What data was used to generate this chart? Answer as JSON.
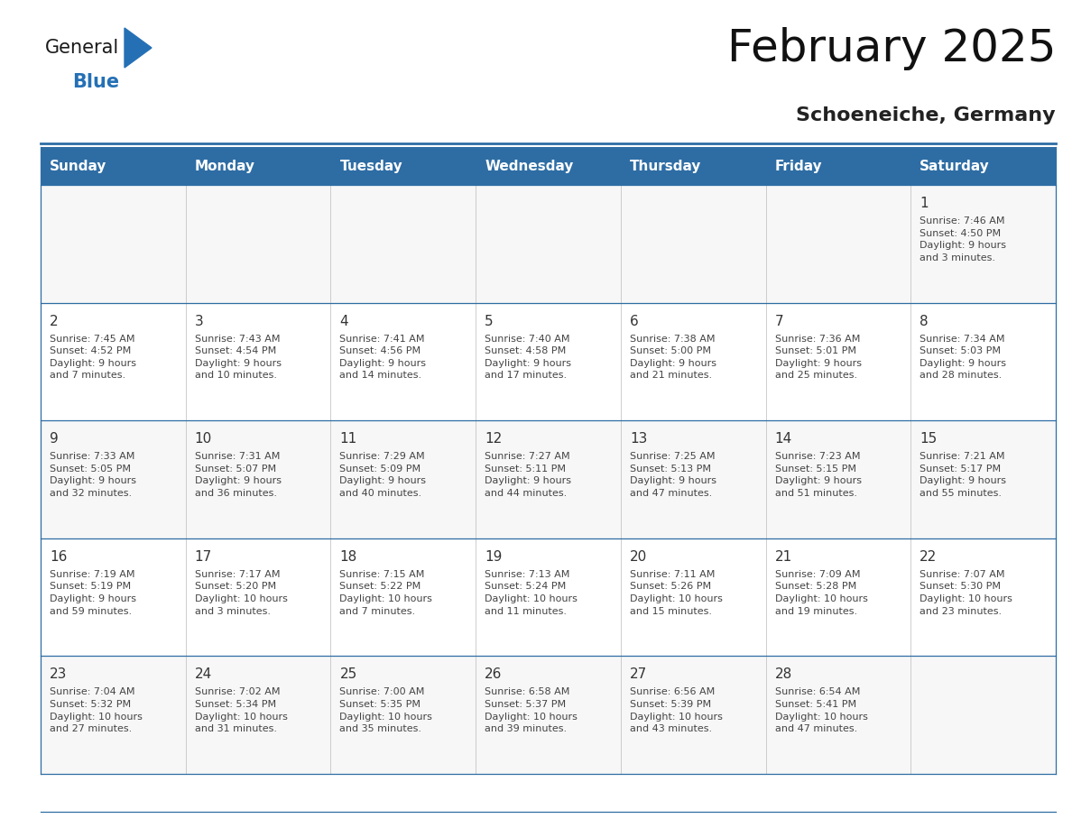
{
  "title": "February 2025",
  "subtitle": "Schoeneiche, Germany",
  "header_bg": "#2E6DA4",
  "header_text_color": "#FFFFFF",
  "day_headers": [
    "Sunday",
    "Monday",
    "Tuesday",
    "Wednesday",
    "Thursday",
    "Friday",
    "Saturday"
  ],
  "grid_line_color": "#2E6DA4",
  "text_color": "#333333",
  "week_rows": [
    [
      {
        "day": null,
        "info": null
      },
      {
        "day": null,
        "info": null
      },
      {
        "day": null,
        "info": null
      },
      {
        "day": null,
        "info": null
      },
      {
        "day": null,
        "info": null
      },
      {
        "day": null,
        "info": null
      },
      {
        "day": 1,
        "info": "Sunrise: 7:46 AM\nSunset: 4:50 PM\nDaylight: 9 hours\nand 3 minutes."
      }
    ],
    [
      {
        "day": 2,
        "info": "Sunrise: 7:45 AM\nSunset: 4:52 PM\nDaylight: 9 hours\nand 7 minutes."
      },
      {
        "day": 3,
        "info": "Sunrise: 7:43 AM\nSunset: 4:54 PM\nDaylight: 9 hours\nand 10 minutes."
      },
      {
        "day": 4,
        "info": "Sunrise: 7:41 AM\nSunset: 4:56 PM\nDaylight: 9 hours\nand 14 minutes."
      },
      {
        "day": 5,
        "info": "Sunrise: 7:40 AM\nSunset: 4:58 PM\nDaylight: 9 hours\nand 17 minutes."
      },
      {
        "day": 6,
        "info": "Sunrise: 7:38 AM\nSunset: 5:00 PM\nDaylight: 9 hours\nand 21 minutes."
      },
      {
        "day": 7,
        "info": "Sunrise: 7:36 AM\nSunset: 5:01 PM\nDaylight: 9 hours\nand 25 minutes."
      },
      {
        "day": 8,
        "info": "Sunrise: 7:34 AM\nSunset: 5:03 PM\nDaylight: 9 hours\nand 28 minutes."
      }
    ],
    [
      {
        "day": 9,
        "info": "Sunrise: 7:33 AM\nSunset: 5:05 PM\nDaylight: 9 hours\nand 32 minutes."
      },
      {
        "day": 10,
        "info": "Sunrise: 7:31 AM\nSunset: 5:07 PM\nDaylight: 9 hours\nand 36 minutes."
      },
      {
        "day": 11,
        "info": "Sunrise: 7:29 AM\nSunset: 5:09 PM\nDaylight: 9 hours\nand 40 minutes."
      },
      {
        "day": 12,
        "info": "Sunrise: 7:27 AM\nSunset: 5:11 PM\nDaylight: 9 hours\nand 44 minutes."
      },
      {
        "day": 13,
        "info": "Sunrise: 7:25 AM\nSunset: 5:13 PM\nDaylight: 9 hours\nand 47 minutes."
      },
      {
        "day": 14,
        "info": "Sunrise: 7:23 AM\nSunset: 5:15 PM\nDaylight: 9 hours\nand 51 minutes."
      },
      {
        "day": 15,
        "info": "Sunrise: 7:21 AM\nSunset: 5:17 PM\nDaylight: 9 hours\nand 55 minutes."
      }
    ],
    [
      {
        "day": 16,
        "info": "Sunrise: 7:19 AM\nSunset: 5:19 PM\nDaylight: 9 hours\nand 59 minutes."
      },
      {
        "day": 17,
        "info": "Sunrise: 7:17 AM\nSunset: 5:20 PM\nDaylight: 10 hours\nand 3 minutes."
      },
      {
        "day": 18,
        "info": "Sunrise: 7:15 AM\nSunset: 5:22 PM\nDaylight: 10 hours\nand 7 minutes."
      },
      {
        "day": 19,
        "info": "Sunrise: 7:13 AM\nSunset: 5:24 PM\nDaylight: 10 hours\nand 11 minutes."
      },
      {
        "day": 20,
        "info": "Sunrise: 7:11 AM\nSunset: 5:26 PM\nDaylight: 10 hours\nand 15 minutes."
      },
      {
        "day": 21,
        "info": "Sunrise: 7:09 AM\nSunset: 5:28 PM\nDaylight: 10 hours\nand 19 minutes."
      },
      {
        "day": 22,
        "info": "Sunrise: 7:07 AM\nSunset: 5:30 PM\nDaylight: 10 hours\nand 23 minutes."
      }
    ],
    [
      {
        "day": 23,
        "info": "Sunrise: 7:04 AM\nSunset: 5:32 PM\nDaylight: 10 hours\nand 27 minutes."
      },
      {
        "day": 24,
        "info": "Sunrise: 7:02 AM\nSunset: 5:34 PM\nDaylight: 10 hours\nand 31 minutes."
      },
      {
        "day": 25,
        "info": "Sunrise: 7:00 AM\nSunset: 5:35 PM\nDaylight: 10 hours\nand 35 minutes."
      },
      {
        "day": 26,
        "info": "Sunrise: 6:58 AM\nSunset: 5:37 PM\nDaylight: 10 hours\nand 39 minutes."
      },
      {
        "day": 27,
        "info": "Sunrise: 6:56 AM\nSunset: 5:39 PM\nDaylight: 10 hours\nand 43 minutes."
      },
      {
        "day": 28,
        "info": "Sunrise: 6:54 AM\nSunset: 5:41 PM\nDaylight: 10 hours\nand 47 minutes."
      },
      {
        "day": null,
        "info": null
      }
    ]
  ],
  "logo_color_general": "#1a1a1a",
  "logo_color_blue": "#2570B5",
  "logo_triangle_color": "#2570B5",
  "title_fontsize": 36,
  "subtitle_fontsize": 16,
  "header_fontsize": 11,
  "day_num_fontsize": 11,
  "info_fontsize": 8
}
